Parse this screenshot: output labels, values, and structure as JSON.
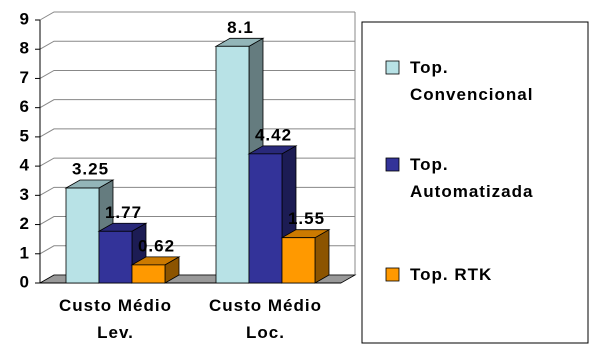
{
  "chart_data": {
    "type": "bar3d",
    "categories": [
      "Custo Médio Lev.",
      "Custo Médio Loc."
    ],
    "series": [
      {
        "name": "Top. Convencional",
        "color": "#b8e2e6",
        "values": [
          3.25,
          8.1
        ]
      },
      {
        "name": "Top. Automatizada",
        "color": "#333399",
        "values": [
          1.77,
          4.42
        ]
      },
      {
        "name": "Top. RTK",
        "color": "#ff9900",
        "values": [
          0.62,
          1.55
        ]
      }
    ],
    "ylim": [
      0,
      9
    ],
    "yticks": [
      0,
      1,
      2,
      3,
      4,
      5,
      6,
      7,
      8,
      9
    ],
    "grid": true,
    "legend": "right"
  }
}
